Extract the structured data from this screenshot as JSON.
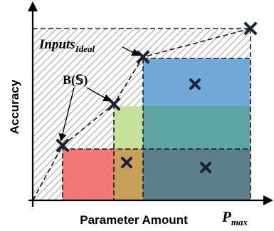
{
  "labels": {
    "y_axis": "Accuracy",
    "x_axis": "Parameter Amount",
    "p_max_main": "P",
    "p_max_sub": "max",
    "inputs_main": "Inputs",
    "inputs_sub": "Ideal",
    "b_set": "B(𝕊)"
  },
  "colors": {
    "hatch": "#9a9a9a",
    "red": "#f07878",
    "orange": "#c9a25c",
    "green": "#c6e29c",
    "teal": "#5fa8a5",
    "blue": "#6fa8d8",
    "slate": "#5a7f8c",
    "marker": "#1a1f2e"
  }
}
